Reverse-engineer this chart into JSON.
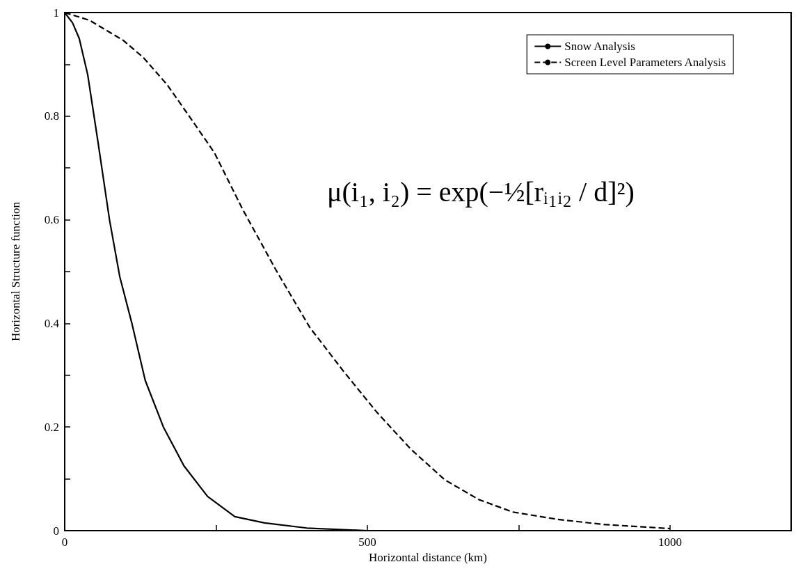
{
  "chart_data": {
    "type": "line",
    "xlabel": "Horizontal distance (km)",
    "ylabel": "Horizontal Structure function",
    "xlim": [
      0,
      1200
    ],
    "xticks": [
      0,
      {
        "value": 250,
        "label": null
      },
      500,
      {
        "value": 750,
        "label": null
      },
      1000
    ],
    "ylim": [
      0,
      1
    ],
    "yticks": [
      0,
      {
        "value": 0.1,
        "label": null
      },
      0.2,
      {
        "value": 0.3,
        "label": null
      },
      0.4,
      {
        "value": 0.5,
        "label": null
      },
      0.6,
      {
        "value": 0.7,
        "label": null
      },
      0.8,
      {
        "value": 0.9,
        "label": null
      },
      1
    ],
    "grid": false,
    "legend": "top right",
    "marker": "none",
    "annotations": [
      "μ(i₁, i₂) = exp(−½[rᵢ₁ᵢ₂ / d]²)"
    ],
    "series": [
      {
        "name": "Snow Analysis",
        "color": "#000000",
        "line_style": "solid",
        "x": [
          0,
          13,
          24,
          38,
          55,
          74,
          91,
          111,
          133,
          163,
          197,
          236,
          281,
          330,
          400,
          500,
          600
        ],
        "values": [
          1,
          0.98,
          0.95,
          0.88,
          0.75,
          0.6,
          0.49,
          0.4,
          0.29,
          0.2,
          0.125,
          0.066,
          0.027,
          0.015,
          0.005,
          0,
          0
        ]
      },
      {
        "name": "Screen Level Parameters Analysis",
        "color": "#000000",
        "line_style": "dashed",
        "x": [
          0,
          41,
          97,
          130,
          169,
          208,
          247,
          294,
          349,
          405,
          461,
          516,
          572,
          628,
          684,
          740,
          813,
          889,
          1000
        ],
        "values": [
          1,
          0.985,
          0.946,
          0.913,
          0.861,
          0.796,
          0.73,
          0.62,
          0.503,
          0.392,
          0.307,
          0.228,
          0.157,
          0.098,
          0.06,
          0.036,
          0.022,
          0.012,
          0.004
        ]
      }
    ]
  }
}
